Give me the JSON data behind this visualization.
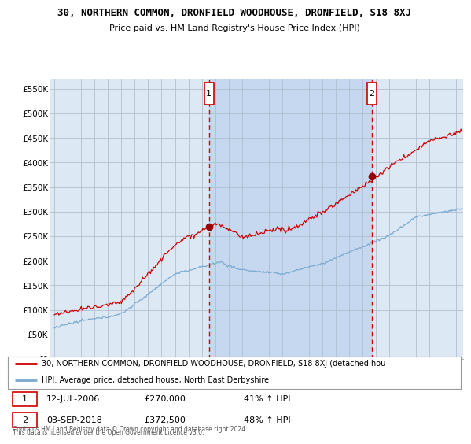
{
  "title1": "30, NORTHERN COMMON, DRONFIELD WOODHOUSE, DRONFIELD, S18 8XJ",
  "title2": "Price paid vs. HM Land Registry's House Price Index (HPI)",
  "ylabel_ticks": [
    "£0",
    "£50K",
    "£100K",
    "£150K",
    "£200K",
    "£250K",
    "£300K",
    "£350K",
    "£400K",
    "£450K",
    "£500K",
    "£550K"
  ],
  "ytick_values": [
    0,
    50000,
    100000,
    150000,
    200000,
    250000,
    300000,
    350000,
    400000,
    450000,
    500000,
    550000
  ],
  "ylim": [
    0,
    570000
  ],
  "xlim_start": 1994.7,
  "xlim_end": 2025.5,
  "sale1_x": 2006.54,
  "sale1_y": 270000,
  "sale1_label": "1",
  "sale1_date": "12-JUL-2006",
  "sale1_price": "£270,000",
  "sale1_hpi": "41% ↑ HPI",
  "sale2_x": 2018.67,
  "sale2_y": 372500,
  "sale2_label": "2",
  "sale2_date": "03-SEP-2018",
  "sale2_price": "£372,500",
  "sale2_hpi": "48% ↑ HPI",
  "legend_line1": "30, NORTHERN COMMON, DRONFIELD WOODHOUSE, DRONFIELD, S18 8XJ (detached hou",
  "legend_line2": "HPI: Average price, detached house, North East Derbyshire",
  "footer1": "Contains HM Land Registry data © Crown copyright and database right 2024.",
  "footer2": "This data is licensed under the Open Government Licence v3.0.",
  "fig_bg_color": "#ffffff",
  "plot_bg_color": "#dde8f5",
  "shade_color": "#c5d8f0",
  "grid_color": "#b0bfcf",
  "red_line_color": "#cc0000",
  "blue_line_color": "#7aaad0",
  "red_dot_color": "#990000"
}
